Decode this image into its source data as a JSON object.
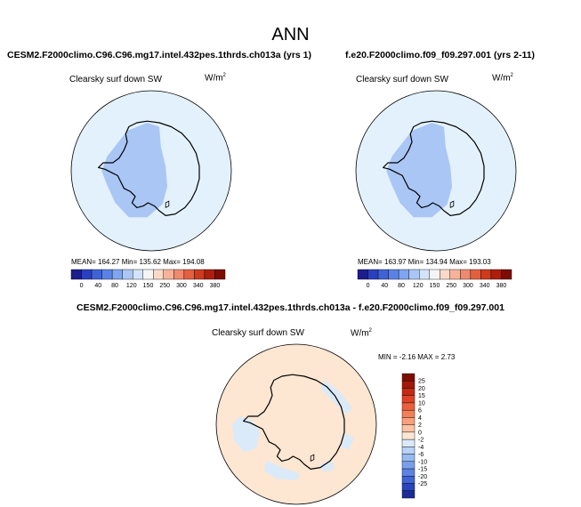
{
  "page_title": "ANN",
  "panels": [
    {
      "case_title": "CESM2.F2000climo.C96.C96.mg17.intel.432pes.1thrds.ch013a (yrs 1)",
      "variable_label": "Clearsky surf down SW",
      "units_base": "W/m",
      "units_exp": "2",
      "stats_text": "MEAN= 164.27   Min= 135.62   Max= 194.08"
    },
    {
      "case_title": "f.e20.F2000climo.f09_f09.297.001 (yrs 2-11)",
      "variable_label": "Clearsky surf down SW",
      "units_base": "W/m",
      "units_exp": "2",
      "stats_text": "MEAN= 163.97   Min= 134.94   Max= 193.03"
    }
  ],
  "diff_panel": {
    "title": "CESM2.F2000climo.C96.C96.mg17.intel.432pes.1thrds.ch013a - f.e20.F2000climo.f09_f09.297.001",
    "variable_label": "Clearsky surf down SW",
    "units_base": "W/m",
    "units_exp": "2",
    "stats_text": "MIN =  -2.16  MAX =   2.73"
  },
  "colors": {
    "map_fill_light": "#e3f1fd",
    "map_fill_mid": "#a9c6f5",
    "map_fill_diff": "#fde6d2",
    "map_fill_diff_neg": "#dbeaf8",
    "coastline": "#000000"
  },
  "chart_data": [
    {
      "type": "heatmap",
      "projection": "south-polar-stereographic",
      "title": "CESM2.F2000climo.C96.C96.mg17.intel.432pes.1thrds.ch013a (yrs 1)",
      "variable": "Clearsky surf down SW",
      "units": "W/m2",
      "mean": 164.27,
      "min": 135.62,
      "max": 194.08,
      "colorbar": {
        "orientation": "horizontal",
        "tick_labels": [
          "0",
          "40",
          "80",
          "120",
          "150",
          "250",
          "300",
          "340",
          "380"
        ],
        "colors": [
          "#1d1d8c",
          "#2a3fbf",
          "#3f62d6",
          "#5a82e6",
          "#7fa4f0",
          "#a9c6f5",
          "#d3e4fa",
          "#f5f5f5",
          "#fbd9c9",
          "#f6b39a",
          "#ef8a6e",
          "#e3603f",
          "#cf3a1c",
          "#ad1f0c",
          "#7d0c04"
        ]
      }
    },
    {
      "type": "heatmap",
      "projection": "south-polar-stereographic",
      "title": "f.e20.F2000climo.f09_f09.297.001 (yrs 2-11)",
      "variable": "Clearsky surf down SW",
      "units": "W/m2",
      "mean": 163.97,
      "min": 134.94,
      "max": 193.03,
      "colorbar": {
        "orientation": "horizontal",
        "tick_labels": [
          "0",
          "40",
          "80",
          "120",
          "150",
          "250",
          "300",
          "340",
          "380"
        ],
        "colors": [
          "#1d1d8c",
          "#2a3fbf",
          "#3f62d6",
          "#5a82e6",
          "#7fa4f0",
          "#a9c6f5",
          "#d3e4fa",
          "#f5f5f5",
          "#fbd9c9",
          "#f6b39a",
          "#ef8a6e",
          "#e3603f",
          "#cf3a1c",
          "#ad1f0c",
          "#7d0c04"
        ]
      }
    },
    {
      "type": "heatmap",
      "projection": "south-polar-stereographic",
      "title": "CESM2.F2000climo.C96.C96.mg17.intel.432pes.1thrds.ch013a - f.e20.F2000climo.f09_f09.297.001",
      "variable": "Clearsky surf down SW",
      "units": "W/m2",
      "min": -2.16,
      "max": 2.73,
      "colorbar": {
        "orientation": "vertical",
        "tick_labels": [
          "25",
          "20",
          "15",
          "10",
          "6",
          "4",
          "2",
          "0",
          "-2",
          "-4",
          "-6",
          "-10",
          "-15",
          "-20",
          "-25"
        ],
        "colors": [
          "#7d0c04",
          "#a3180a",
          "#c52a14",
          "#df4226",
          "#ec5f3c",
          "#f47e58",
          "#f9a07d",
          "#fcc3a6",
          "#fde6d2",
          "#dbeaf8",
          "#b9d3f6",
          "#97baf1",
          "#7aa0eb",
          "#5c82e2",
          "#4064d4",
          "#2a44bb",
          "#1c2b98"
        ]
      }
    }
  ]
}
